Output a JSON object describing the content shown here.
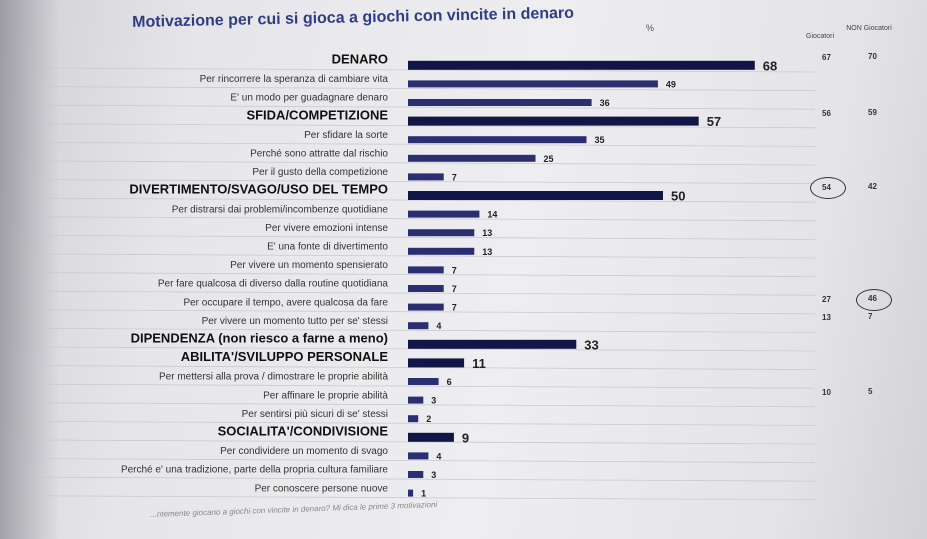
{
  "chart_data": {
    "type": "bar",
    "orientation": "horizontal",
    "title": "Motivazione per cui si gioca a giochi con vincite in denaro",
    "unit": "%",
    "xlim": [
      0,
      70
    ],
    "grid": false,
    "categories": [
      {
        "label": "DENARO",
        "value": 68,
        "level": "group"
      },
      {
        "label": "Per rincorrere la speranza di cambiare vita",
        "value": 49,
        "level": "item"
      },
      {
        "label": "E' un modo per guadagnare denaro",
        "value": 36,
        "level": "item"
      },
      {
        "label": "SFIDA/COMPETIZIONE",
        "value": 57,
        "level": "group"
      },
      {
        "label": "Per sfidare la sorte",
        "value": 35,
        "level": "item"
      },
      {
        "label": "Perché sono attratte dal rischio",
        "value": 25,
        "level": "item"
      },
      {
        "label": "Per il gusto della competizione",
        "value": 7,
        "level": "item"
      },
      {
        "label": "DIVERTIMENTO/SVAGO/USO DEL TEMPO",
        "value": 50,
        "level": "group"
      },
      {
        "label": "Per distrarsi dai problemi/incombenze quotidiane",
        "value": 14,
        "level": "item"
      },
      {
        "label": "Per vivere emozioni intense",
        "value": 13,
        "level": "item"
      },
      {
        "label": "E' una fonte di divertimento",
        "value": 13,
        "level": "item"
      },
      {
        "label": "Per vivere un momento spensierato",
        "value": 7,
        "level": "item"
      },
      {
        "label": "Per fare qualcosa di diverso dalla routine quotidiana",
        "value": 7,
        "level": "item"
      },
      {
        "label": "Per occupare il tempo, avere qualcosa da fare",
        "value": 7,
        "level": "item"
      },
      {
        "label": "Per vivere un momento tutto per se' stessi",
        "value": 4,
        "level": "item"
      },
      {
        "label": "DIPENDENZA (non riesco a farne a meno)",
        "value": 33,
        "level": "group"
      },
      {
        "label": "ABILITA'/SVILUPPO PERSONALE",
        "value": 11,
        "level": "group"
      },
      {
        "label": "Per mettersi alla prova / dimostrare le proprie abilità",
        "value": 6,
        "level": "item"
      },
      {
        "label": "Per affinare le proprie abilità",
        "value": 3,
        "level": "item"
      },
      {
        "label": "Per sentirsi più sicuri di se' stessi",
        "value": 2,
        "level": "item"
      },
      {
        "label": "SOCIALITA'/CONDIVISIONE",
        "value": 9,
        "level": "group"
      },
      {
        "label": "Per condividere un momento di svago",
        "value": 4,
        "level": "item"
      },
      {
        "label": "Perché e' una tradizione, parte della propria cultura familiare",
        "value": 3,
        "level": "item"
      },
      {
        "label": "Per conoscere persone nuove",
        "value": 1,
        "level": "item"
      }
    ],
    "side_columns": {
      "headers": [
        "Giocatori",
        "NON Giocatori"
      ],
      "rows": [
        {
          "row": 0,
          "values": [
            "67",
            "70"
          ]
        },
        {
          "row": 3,
          "values": [
            "56",
            "59"
          ]
        },
        {
          "row": 7,
          "values": [
            "54",
            "42"
          ],
          "circled": 0
        },
        {
          "row": 13,
          "values": [
            "27",
            "46"
          ],
          "circled": 1
        },
        {
          "row": 14,
          "values": [
            "13",
            "7"
          ]
        },
        {
          "row": 18,
          "values": [
            "10",
            "5"
          ]
        }
      ]
    },
    "footnote": "...ntemente giocano a giochi con vincite in denaro?  Mi dica le prime 3 motivazioni"
  }
}
